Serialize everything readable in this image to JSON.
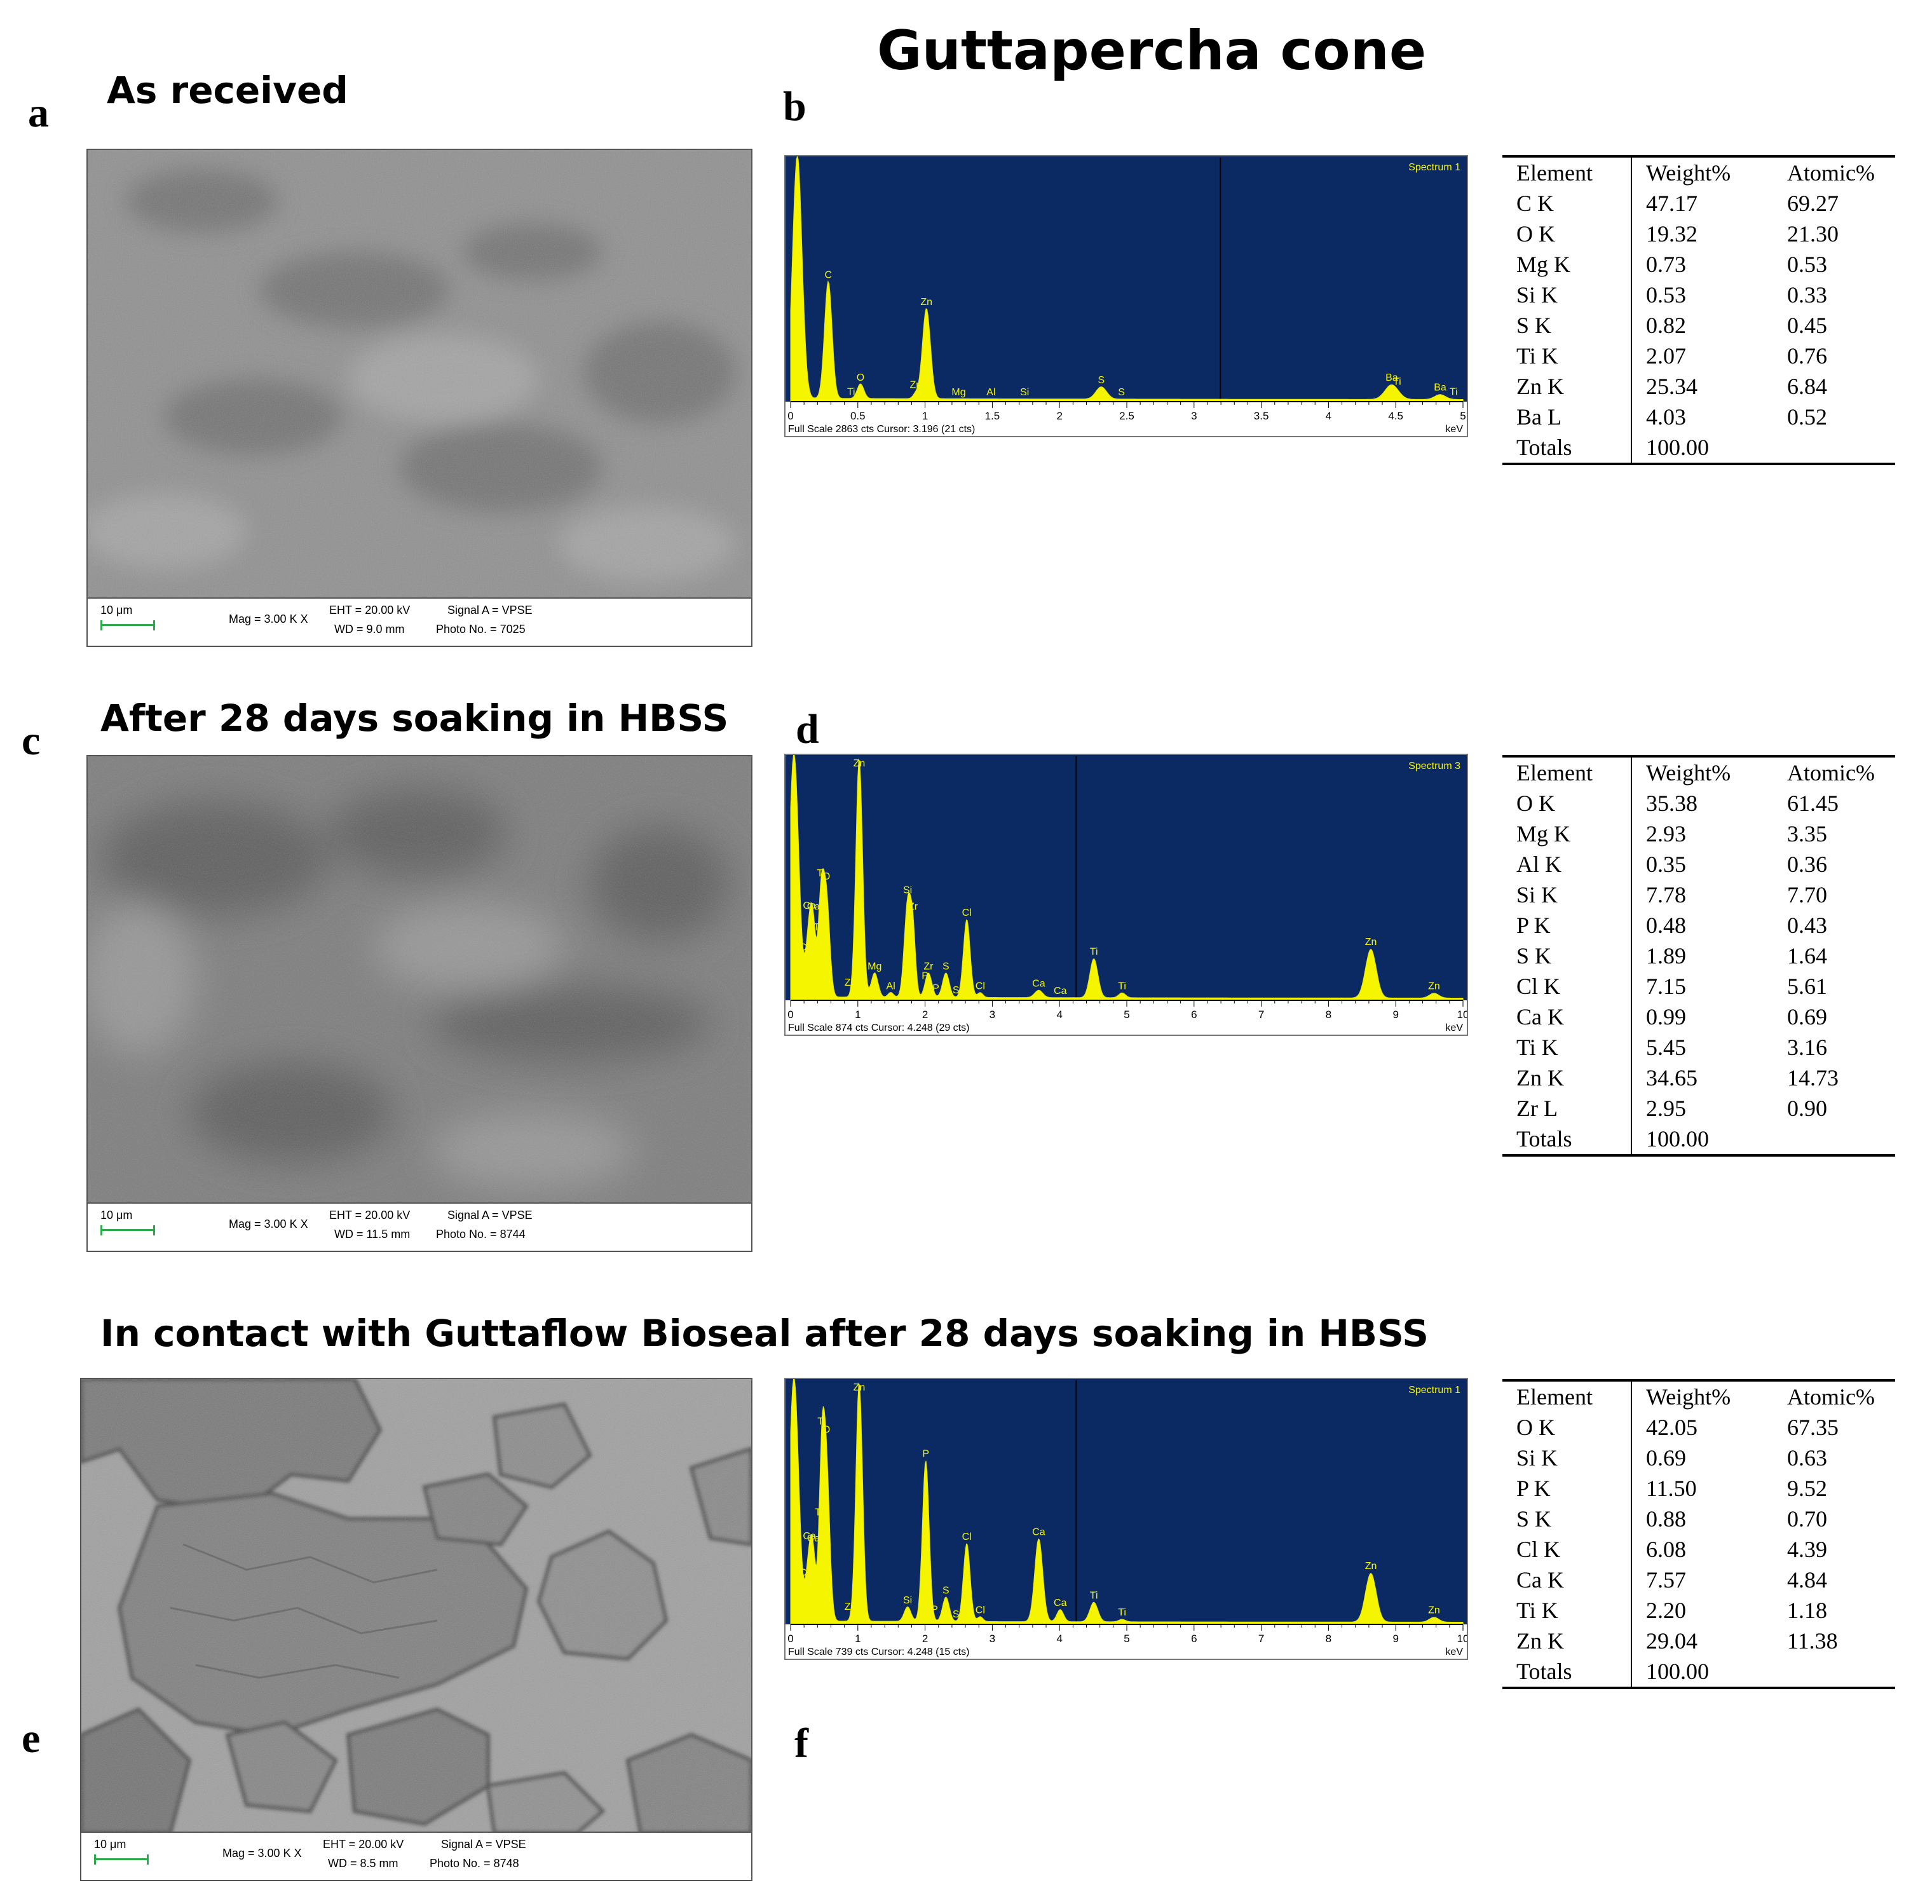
{
  "figure": {
    "title": "Guttapercha cone",
    "panels": [
      {
        "letter": "a",
        "section_title": "As received",
        "sem": {
          "scale": "10 μm",
          "mag": "Mag =   3.00 K X",
          "eht": "EHT = 20.00 kV",
          "wd": "WD =   9.0 mm",
          "signal": "Signal A = VPSE",
          "photo": "Photo No. = 7025"
        }
      },
      {
        "letter": "c",
        "section_title": "After 28 days soaking in HBSS",
        "sem": {
          "scale": "10 μm",
          "mag": "Mag =   3.00 K X",
          "eht": "EHT = 20.00 kV",
          "wd": "WD = 11.5 mm",
          "signal": "Signal A = VPSE",
          "photo": "Photo No. = 8744"
        }
      },
      {
        "letter": "e",
        "section_title": "In contact with Guttaflow Bioseal after 28 days soaking in HBSS",
        "sem": {
          "scale": "10 μm",
          "mag": "Mag =   3.00 K X",
          "eht": "EHT = 20.00 kV",
          "wd": "WD =   8.5 mm",
          "signal": "Signal A = VPSE",
          "photo": "Photo No. = 8748"
        }
      }
    ],
    "eds": [
      {
        "letter": "b",
        "spectrum": "Spectrum 1",
        "footer": "Full Scale 2863 cts Cursor: 3.196  (21 cts)"
      },
      {
        "letter": "d",
        "spectrum": "Spectrum 3",
        "footer": "Full Scale 874 cts Cursor: 4.248  (29 cts)"
      },
      {
        "letter": "f",
        "spectrum": "Spectrum 1",
        "footer": "Full Scale 739 cts Cursor: 4.248  (15 cts)"
      }
    ],
    "tables": [
      {
        "headers": [
          "Element",
          "Weight%",
          "Atomic%"
        ],
        "rows": [
          [
            "C K",
            "47.17",
            "69.27"
          ],
          [
            "O K",
            "19.32",
            "21.30"
          ],
          [
            "Mg K",
            "0.73",
            "0.53"
          ],
          [
            "Si K",
            "0.53",
            "0.33"
          ],
          [
            "S K",
            "0.82",
            "0.45"
          ],
          [
            "Ti K",
            "2.07",
            "0.76"
          ],
          [
            "Zn K",
            "25.34",
            "6.84"
          ],
          [
            "Ba L",
            "4.03",
            "0.52"
          ],
          [
            "Totals",
            "100.00",
            ""
          ]
        ]
      },
      {
        "headers": [
          "Element",
          "Weight%",
          "Atomic%"
        ],
        "rows": [
          [
            "O K",
            "35.38",
            "61.45"
          ],
          [
            "Mg K",
            "2.93",
            "3.35"
          ],
          [
            "Al K",
            "0.35",
            "0.36"
          ],
          [
            "Si K",
            "7.78",
            "7.70"
          ],
          [
            "P K",
            "0.48",
            "0.43"
          ],
          [
            "S K",
            "1.89",
            "1.64"
          ],
          [
            "Cl K",
            "7.15",
            "5.61"
          ],
          [
            "Ca K",
            "0.99",
            "0.69"
          ],
          [
            "Ti K",
            "5.45",
            "3.16"
          ],
          [
            "Zn K",
            "34.65",
            "14.73"
          ],
          [
            "Zr L",
            "2.95",
            "0.90"
          ],
          [
            "Totals",
            "100.00",
            ""
          ]
        ]
      },
      {
        "headers": [
          "Element",
          "Weight%",
          "Atomic%"
        ],
        "rows": [
          [
            "O K",
            "42.05",
            "67.35"
          ],
          [
            "Si K",
            "0.69",
            "0.63"
          ],
          [
            "P K",
            "11.50",
            "9.52"
          ],
          [
            "S K",
            "0.88",
            "0.70"
          ],
          [
            "Cl K",
            "6.08",
            "4.39"
          ],
          [
            "Ca K",
            "7.57",
            "4.84"
          ],
          [
            "Ti K",
            "2.20",
            "1.18"
          ],
          [
            "Zn K",
            "29.04",
            "11.38"
          ],
          [
            "Totals",
            "100.00",
            ""
          ]
        ]
      }
    ]
  },
  "chart_data": [
    {
      "type": "line",
      "title": "Spectrum 1",
      "xlabel": "keV",
      "xlim": [
        0,
        5
      ],
      "x_ticks": [
        "0",
        "0.5",
        "1",
        "1.5",
        "2",
        "2.5",
        "3",
        "3.5",
        "4",
        "4.5",
        "5"
      ],
      "cursor_keV": 3.196,
      "peaks": [
        {
          "x": 0.05,
          "h": 1.0,
          "w": 0.035,
          "label": ""
        },
        {
          "x": 0.28,
          "h": 0.48,
          "w": 0.028,
          "label": "C"
        },
        {
          "x": 0.52,
          "h": 0.06,
          "w": 0.025,
          "label": "O"
        },
        {
          "x": 0.45,
          "h": 0.0,
          "w": 0.02,
          "label": "Ti"
        },
        {
          "x": 0.93,
          "h": 0.02,
          "w": 0.02,
          "label": "Zn"
        },
        {
          "x": 1.01,
          "h": 0.37,
          "w": 0.03,
          "label": "Zn"
        },
        {
          "x": 1.25,
          "h": 0.0,
          "w": 0.02,
          "label": "Mg"
        },
        {
          "x": 1.49,
          "h": 0.0,
          "w": 0.02,
          "label": "Al"
        },
        {
          "x": 1.74,
          "h": 0.0,
          "w": 0.02,
          "label": "Si"
        },
        {
          "x": 2.31,
          "h": 0.05,
          "w": 0.04,
          "label": "S"
        },
        {
          "x": 2.46,
          "h": 0.0,
          "w": 0.02,
          "label": "S"
        },
        {
          "x": 4.47,
          "h": 0.06,
          "w": 0.05,
          "label": "Ba"
        },
        {
          "x": 4.51,
          "h": 0.0,
          "w": 0.02,
          "label": "Ti"
        },
        {
          "x": 4.83,
          "h": 0.02,
          "w": 0.04,
          "label": "Ba"
        },
        {
          "x": 4.93,
          "h": 0.0,
          "w": 0.02,
          "label": "Ti"
        }
      ]
    },
    {
      "type": "line",
      "title": "Spectrum 3",
      "xlabel": "keV",
      "xlim": [
        0,
        10
      ],
      "x_ticks": [
        "0",
        "1",
        "2",
        "3",
        "4",
        "5",
        "6",
        "7",
        "8",
        "9",
        "10"
      ],
      "cursor_keV": 4.248,
      "peaks": [
        {
          "x": 0.05,
          "h": 1.0,
          "w": 0.07,
          "label": ""
        },
        {
          "x": 0.28,
          "h": 0.28,
          "w": 0.05,
          "label": "Ca"
        },
        {
          "x": 0.34,
          "h": 0.2,
          "w": 0.04,
          "label": "Ca"
        },
        {
          "x": 0.2,
          "h": 0.0,
          "w": 0.04,
          "label": "Cl"
        },
        {
          "x": 0.4,
          "h": 0.0,
          "w": 0.04,
          "label": "Ti"
        },
        {
          "x": 0.45,
          "h": 0.36,
          "w": 0.04,
          "label": "Ti"
        },
        {
          "x": 0.53,
          "h": 0.42,
          "w": 0.05,
          "label": "O"
        },
        {
          "x": 0.89,
          "h": 0.0,
          "w": 0.04,
          "label": "Zn"
        },
        {
          "x": 1.02,
          "h": 0.98,
          "w": 0.05,
          "label": "Zn"
        },
        {
          "x": 1.25,
          "h": 0.1,
          "w": 0.05,
          "label": "Mg"
        },
        {
          "x": 1.49,
          "h": 0.02,
          "w": 0.04,
          "label": "Al"
        },
        {
          "x": 1.74,
          "h": 0.38,
          "w": 0.05,
          "label": "Si"
        },
        {
          "x": 1.82,
          "h": 0.24,
          "w": 0.04,
          "label": "Zr"
        },
        {
          "x": 2.0,
          "h": 0.0,
          "w": 0.04,
          "label": "P"
        },
        {
          "x": 2.05,
          "h": 0.1,
          "w": 0.05,
          "label": "Zr"
        },
        {
          "x": 2.16,
          "h": 0.0,
          "w": 0.04,
          "label": "P"
        },
        {
          "x": 2.31,
          "h": 0.1,
          "w": 0.05,
          "label": "S"
        },
        {
          "x": 2.46,
          "h": 0.0,
          "w": 0.04,
          "label": "S"
        },
        {
          "x": 2.62,
          "h": 0.32,
          "w": 0.05,
          "label": "Cl"
        },
        {
          "x": 2.82,
          "h": 0.02,
          "w": 0.04,
          "label": "Cl"
        },
        {
          "x": 3.69,
          "h": 0.03,
          "w": 0.06,
          "label": "Ca"
        },
        {
          "x": 4.01,
          "h": 0.0,
          "w": 0.05,
          "label": "Ca"
        },
        {
          "x": 4.51,
          "h": 0.16,
          "w": 0.06,
          "label": "Ti"
        },
        {
          "x": 4.93,
          "h": 0.02,
          "w": 0.05,
          "label": "Ti"
        },
        {
          "x": 8.63,
          "h": 0.2,
          "w": 0.08,
          "label": "Zn"
        },
        {
          "x": 9.57,
          "h": 0.02,
          "w": 0.07,
          "label": "Zn"
        }
      ]
    },
    {
      "type": "line",
      "title": "Spectrum 1",
      "xlabel": "keV",
      "xlim": [
        0,
        10
      ],
      "x_ticks": [
        "0",
        "1",
        "2",
        "3",
        "4",
        "5",
        "6",
        "7",
        "8",
        "9",
        "10"
      ],
      "cursor_keV": 4.248,
      "peaks": [
        {
          "x": 0.05,
          "h": 1.0,
          "w": 0.07,
          "label": ""
        },
        {
          "x": 0.28,
          "h": 0.26,
          "w": 0.05,
          "label": "Ca"
        },
        {
          "x": 0.34,
          "h": 0.18,
          "w": 0.04,
          "label": "Ca"
        },
        {
          "x": 0.2,
          "h": 0.0,
          "w": 0.04,
          "label": "Cl"
        },
        {
          "x": 0.42,
          "h": 0.0,
          "w": 0.04,
          "label": "Ti"
        },
        {
          "x": 0.46,
          "h": 0.55,
          "w": 0.04,
          "label": "Ti"
        },
        {
          "x": 0.53,
          "h": 0.64,
          "w": 0.05,
          "label": "O"
        },
        {
          "x": 0.89,
          "h": 0.0,
          "w": 0.04,
          "label": "Zn"
        },
        {
          "x": 1.02,
          "h": 0.98,
          "w": 0.05,
          "label": "Zn"
        },
        {
          "x": 1.74,
          "h": 0.06,
          "w": 0.05,
          "label": "Si"
        },
        {
          "x": 2.01,
          "h": 0.66,
          "w": 0.05,
          "label": "P"
        },
        {
          "x": 2.14,
          "h": 0.0,
          "w": 0.04,
          "label": "P"
        },
        {
          "x": 2.31,
          "h": 0.1,
          "w": 0.05,
          "label": "S"
        },
        {
          "x": 2.46,
          "h": 0.0,
          "w": 0.04,
          "label": "S"
        },
        {
          "x": 2.62,
          "h": 0.32,
          "w": 0.05,
          "label": "Cl"
        },
        {
          "x": 2.82,
          "h": 0.02,
          "w": 0.04,
          "label": "Cl"
        },
        {
          "x": 3.69,
          "h": 0.34,
          "w": 0.06,
          "label": "Ca"
        },
        {
          "x": 4.01,
          "h": 0.05,
          "w": 0.05,
          "label": "Ca"
        },
        {
          "x": 4.51,
          "h": 0.08,
          "w": 0.06,
          "label": "Ti"
        },
        {
          "x": 4.93,
          "h": 0.01,
          "w": 0.05,
          "label": "Ti"
        },
        {
          "x": 8.63,
          "h": 0.2,
          "w": 0.08,
          "label": "Zn"
        },
        {
          "x": 9.57,
          "h": 0.02,
          "w": 0.07,
          "label": "Zn"
        }
      ]
    }
  ]
}
